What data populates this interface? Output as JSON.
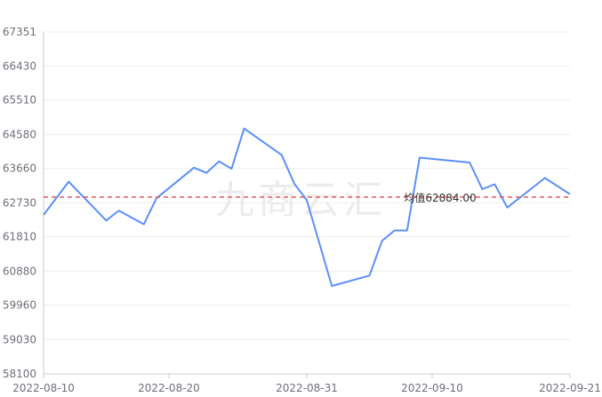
{
  "chart_data": {
    "type": "line",
    "title": "",
    "xlabel": "",
    "ylabel": "",
    "ylim": [
      58100,
      67351
    ],
    "y_ticks": [
      "58100",
      "59030",
      "59960",
      "60880",
      "61810",
      "62730",
      "63660",
      "64580",
      "65510",
      "66430",
      "67351"
    ],
    "x_tick_labels": [
      "2022-08-10",
      "2022-08-20",
      "2022-08-31",
      "2022-09-10",
      "2022-09-21"
    ],
    "x_range": [
      "2022-08-10",
      "2022-09-21"
    ],
    "grid": true,
    "legend": "none",
    "series": [
      {
        "color": "#5b8ff9",
        "points": [
          {
            "x": "2022-08-10",
            "y": 62400
          },
          {
            "x": "2022-08-12",
            "y": 63300
          },
          {
            "x": "2022-08-15",
            "y": 62250
          },
          {
            "x": "2022-08-16",
            "y": 62520
          },
          {
            "x": "2022-08-18",
            "y": 62150
          },
          {
            "x": "2022-08-19",
            "y": 62850
          },
          {
            "x": "2022-08-22",
            "y": 63680
          },
          {
            "x": "2022-08-23",
            "y": 63540
          },
          {
            "x": "2022-08-24",
            "y": 63850
          },
          {
            "x": "2022-08-25",
            "y": 63650
          },
          {
            "x": "2022-08-26",
            "y": 64740
          },
          {
            "x": "2022-08-29",
            "y": 64020
          },
          {
            "x": "2022-08-30",
            "y": 63250
          },
          {
            "x": "2022-08-31",
            "y": 62800
          },
          {
            "x": "2022-09-02",
            "y": 60480
          },
          {
            "x": "2022-09-05",
            "y": 60760
          },
          {
            "x": "2022-09-06",
            "y": 61700
          },
          {
            "x": "2022-09-07",
            "y": 61980
          },
          {
            "x": "2022-09-08",
            "y": 61980
          },
          {
            "x": "2022-09-09",
            "y": 63950
          },
          {
            "x": "2022-09-13",
            "y": 63820
          },
          {
            "x": "2022-09-14",
            "y": 63100
          },
          {
            "x": "2022-09-15",
            "y": 63230
          },
          {
            "x": "2022-09-16",
            "y": 62600
          },
          {
            "x": "2022-09-19",
            "y": 63400
          },
          {
            "x": "2022-09-21",
            "y": 62960
          }
        ]
      }
    ],
    "mark_line": {
      "label": "均值62884.00",
      "value": 62884,
      "color": "#e8585e"
    },
    "watermark": "九商云汇"
  }
}
